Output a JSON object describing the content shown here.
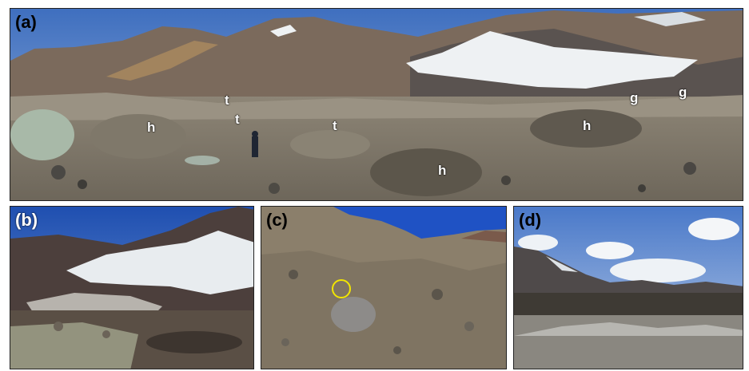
{
  "panels": [
    {
      "label": "(a)",
      "annotations": [
        "t",
        "t",
        "t",
        "h",
        "h",
        "h",
        "g",
        "g"
      ],
      "scene": "panorama of debris-covered glacier with thermokarst ponds and snow-capped peaks"
    },
    {
      "label": "(b)",
      "scene": "glacier ice cliff above turbid meltwater lake"
    },
    {
      "label": "(c)",
      "scene": "close-up of till with boulders; yellow circle marks a clast"
    },
    {
      "label": "(d)",
      "scene": "glacier surface with distant peaks and cumulus clouds"
    }
  ],
  "colors": {
    "sky": "#6f8fc4",
    "marker_circle": "#f2e600",
    "annotation_text": "#ffffff"
  }
}
